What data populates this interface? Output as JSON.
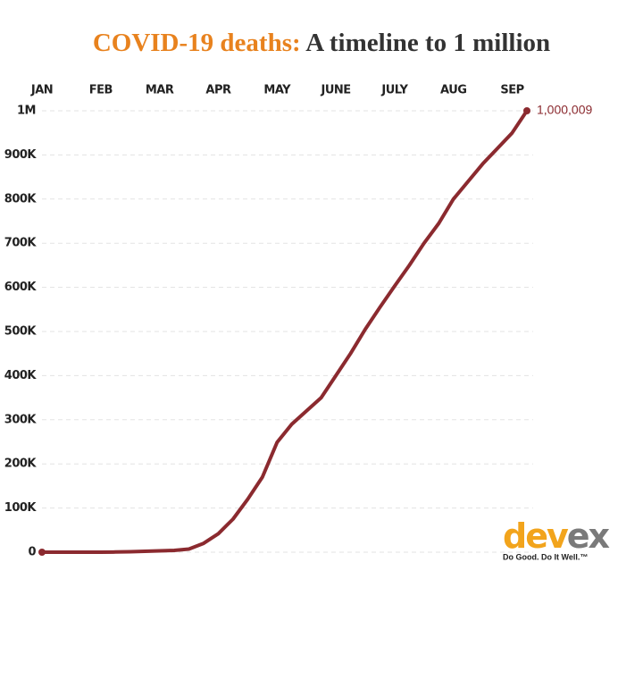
{
  "chart_data": {
    "type": "line",
    "title": [
      "COVID-19 deaths:",
      "A timeline to 1 million"
    ],
    "categories": [
      "JAN",
      null,
      null,
      null,
      "FEB",
      null,
      null,
      null,
      "MAR",
      null,
      null,
      null,
      "APR",
      null,
      null,
      null,
      "MAY",
      null,
      null,
      null,
      "JUNE",
      null,
      null,
      null,
      "JULY",
      null,
      null,
      null,
      "AUG",
      null,
      null,
      null,
      "SEP",
      null
    ],
    "series": [
      {
        "name": "COVID-19 deaths",
        "color": "#8b2a2f",
        "values": [
          0,
          0,
          0,
          0,
          0,
          500,
          1000,
          2000,
          3000,
          4000,
          7000,
          20000,
          42000,
          75000,
          120000,
          170000,
          249000,
          290000,
          320000,
          350000,
          400000,
          450000,
          505000,
          555000,
          603000,
          650000,
          700000,
          745000,
          800000,
          840000,
          880000,
          915000,
          950000,
          1000009
        ],
        "value_labels": {
          "33": "1,000,009"
        }
      }
    ],
    "ylim": [
      0,
      1000000
    ],
    "yticks": [
      0,
      {
        "value": 100000,
        "label": "100K"
      },
      {
        "value": 200000,
        "label": "200K"
      },
      {
        "value": 300000,
        "label": "300K"
      },
      {
        "value": 400000,
        "label": "400K"
      },
      {
        "value": 500000,
        "label": "500K"
      },
      {
        "value": 600000,
        "label": "600K"
      },
      {
        "value": 700000,
        "label": "700K"
      },
      {
        "value": 800000,
        "label": "800K"
      },
      {
        "value": 900000,
        "label": "900K"
      },
      {
        "value": 1000000,
        "label": "1M"
      }
    ],
    "grid": true,
    "logo": {
      "parts": [
        "dev",
        "ex"
      ],
      "tagline": "Do Good. Do It Well.™"
    }
  }
}
